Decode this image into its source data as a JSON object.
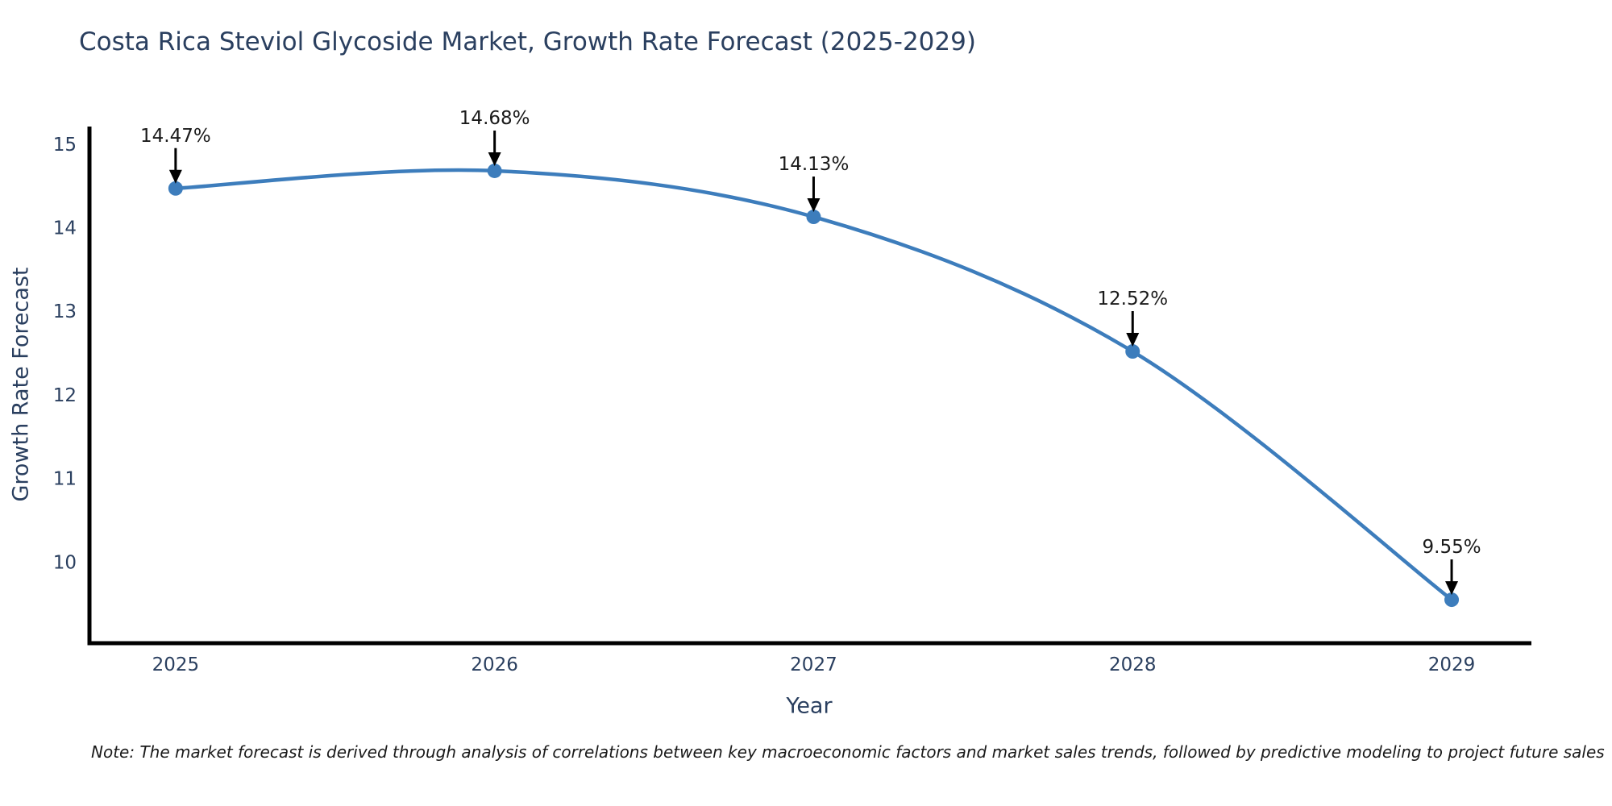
{
  "title": "Costa Rica Steviol Glycoside Market, Growth Rate Forecast (2025-2029)",
  "note": "Note: The market forecast is derived through analysis of correlations between key macroeconomic factors and market sales trends, followed by predictive modeling to project future sales",
  "chart_data": {
    "type": "line",
    "title": "Costa Rica Steviol Glycoside Market, Growth Rate Forecast (2025-2029)",
    "xlabel": "Year",
    "ylabel": "Growth Rate Forecast",
    "x": [
      2025,
      2026,
      2027,
      2028,
      2029
    ],
    "values": [
      14.47,
      14.68,
      14.13,
      12.52,
      9.55
    ],
    "point_labels": [
      "14.47%",
      "14.68%",
      "14.13%",
      "12.52%",
      "9.55%"
    ],
    "xticks": [
      "2025",
      "2026",
      "2027",
      "2028",
      "2029"
    ],
    "yticks": [
      15,
      14,
      13,
      12,
      11,
      10
    ],
    "xlim": [
      2024.73,
      2029.25
    ],
    "ylim": [
      9.03,
      15.21
    ],
    "line_shape": "spline",
    "grid": false,
    "legend": false,
    "colors": {
      "line": "#3d7dbc",
      "marker": "#3d7dbc",
      "axis": "#000000",
      "axis_text": "#2a3f5f",
      "annotation_text": "#1a1a1a",
      "annotation_arrow": "#000000",
      "background": "#ffffff"
    }
  }
}
